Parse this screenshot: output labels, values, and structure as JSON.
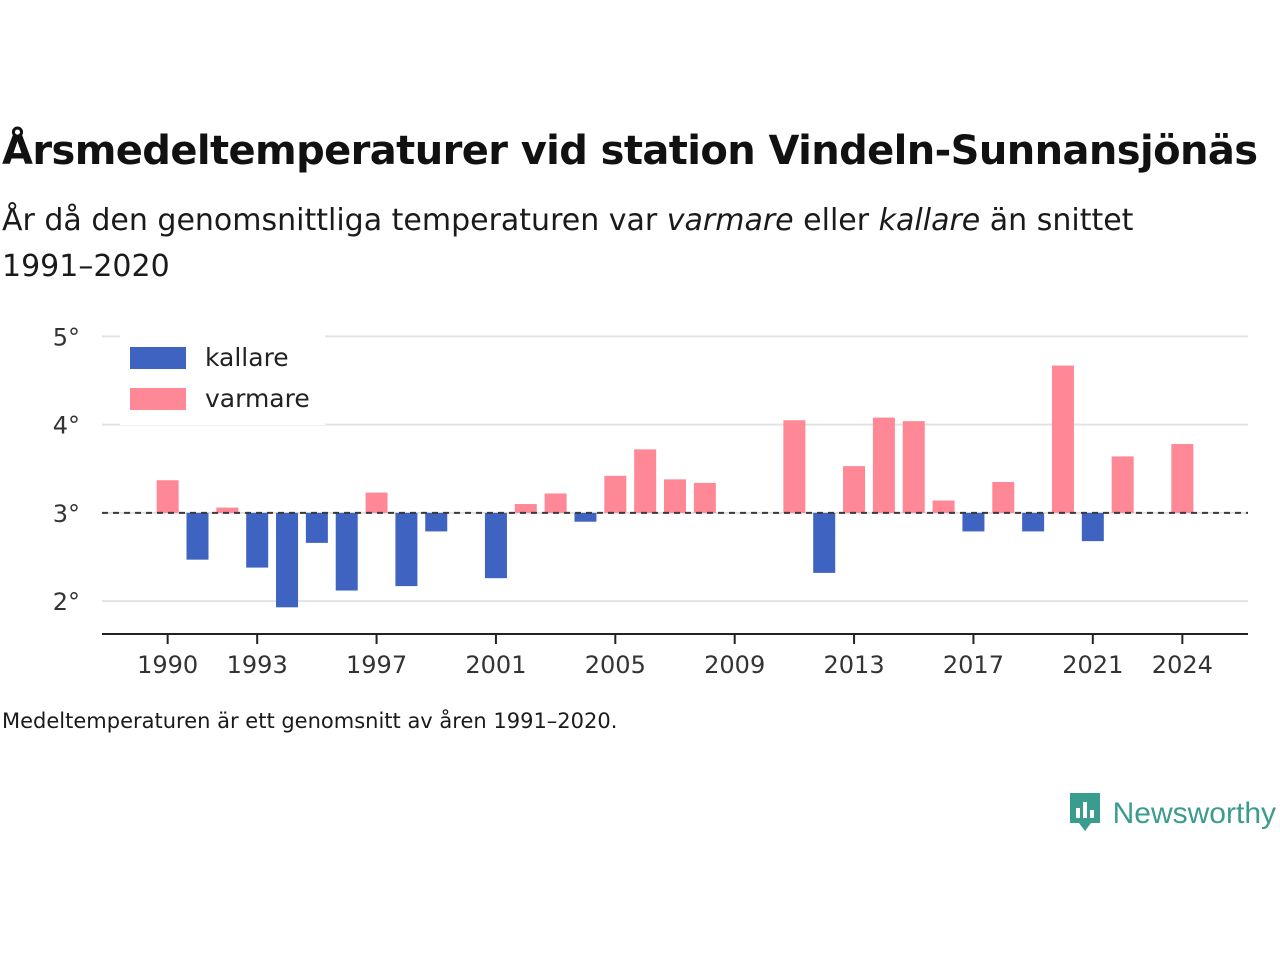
{
  "title": "Årsmedeltemperaturer vid station Vindeln-Sunnansjönäs",
  "subtitle": {
    "part1": "År då den genomsnittliga temperaturen var ",
    "warm_word": "varmare",
    "part2": " eller ",
    "cold_word": "kallare",
    "part3": " än snittet 1991–2020"
  },
  "footnote": "Medeltemperaturen är ett genomsnitt av åren 1991–2020.",
  "brand": {
    "name": "Newsworthy",
    "icon": "newsworthy-logo-icon",
    "color": "#3a9b8f"
  },
  "chart_data": {
    "type": "bar",
    "baseline": 3.0,
    "ylim": [
      1.65,
      5.05
    ],
    "yticks": [
      2,
      3,
      4,
      5
    ],
    "ytick_suffix": "°",
    "xlim": [
      1987.8,
      2026.2
    ],
    "xticks": [
      1990,
      1993,
      1997,
      2001,
      2005,
      2009,
      2013,
      2017,
      2021,
      2024
    ],
    "grid": true,
    "legend_position": "top-left",
    "series": [
      {
        "name": "kallare",
        "color": "#3f63c0"
      },
      {
        "name": "varmare",
        "color": "#ff8896"
      }
    ],
    "x": [
      1990,
      1991,
      1992,
      1993,
      1994,
      1995,
      1996,
      1997,
      1998,
      1999,
      2001,
      2002,
      2003,
      2004,
      2005,
      2006,
      2007,
      2008,
      2011,
      2012,
      2013,
      2014,
      2015,
      2016,
      2017,
      2018,
      2019,
      2020,
      2021,
      2022,
      2024
    ],
    "values": [
      3.37,
      2.47,
      3.06,
      2.38,
      1.93,
      2.66,
      2.12,
      3.23,
      2.17,
      2.79,
      2.26,
      3.1,
      3.22,
      2.9,
      3.42,
      3.72,
      3.38,
      3.34,
      4.05,
      2.32,
      3.53,
      4.08,
      4.04,
      3.14,
      2.79,
      3.35,
      2.79,
      4.67,
      2.68,
      3.64,
      3.78
    ]
  }
}
